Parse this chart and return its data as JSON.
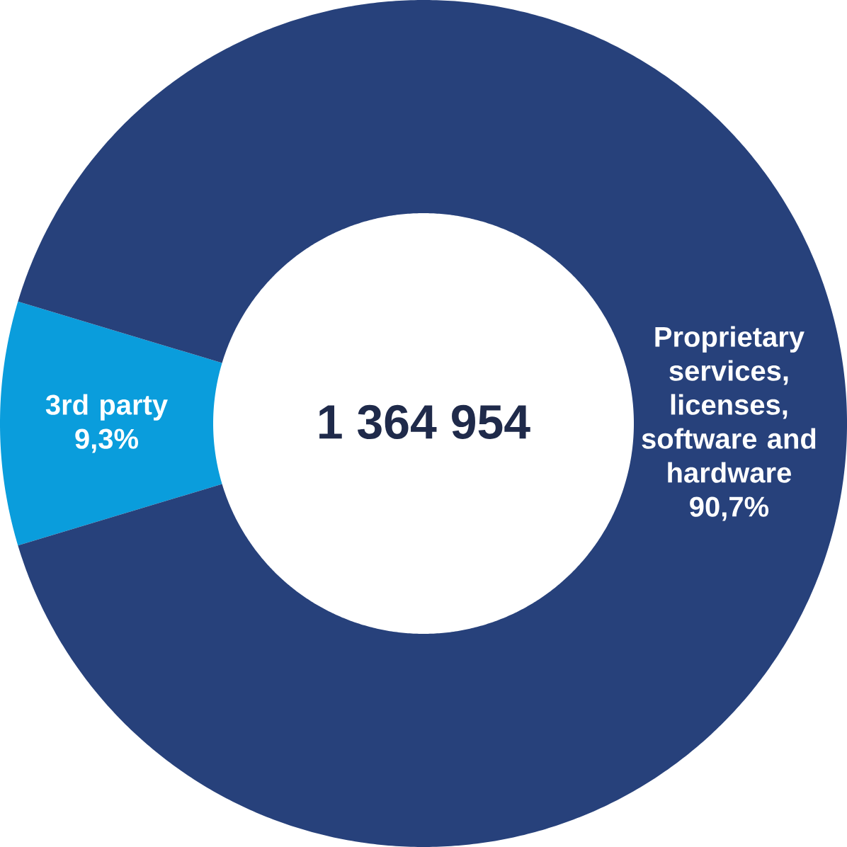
{
  "chart_data": {
    "type": "donut",
    "categories": [
      "3rd party",
      "Proprietary services, licenses, software and hardware"
    ],
    "values": [
      9.3,
      90.7
    ],
    "colors": [
      "#0a9ddc",
      "#27417b"
    ],
    "value_labels": [
      "9,3%",
      "90,7%"
    ],
    "annotations": [
      "1 364 954"
    ]
  }
}
